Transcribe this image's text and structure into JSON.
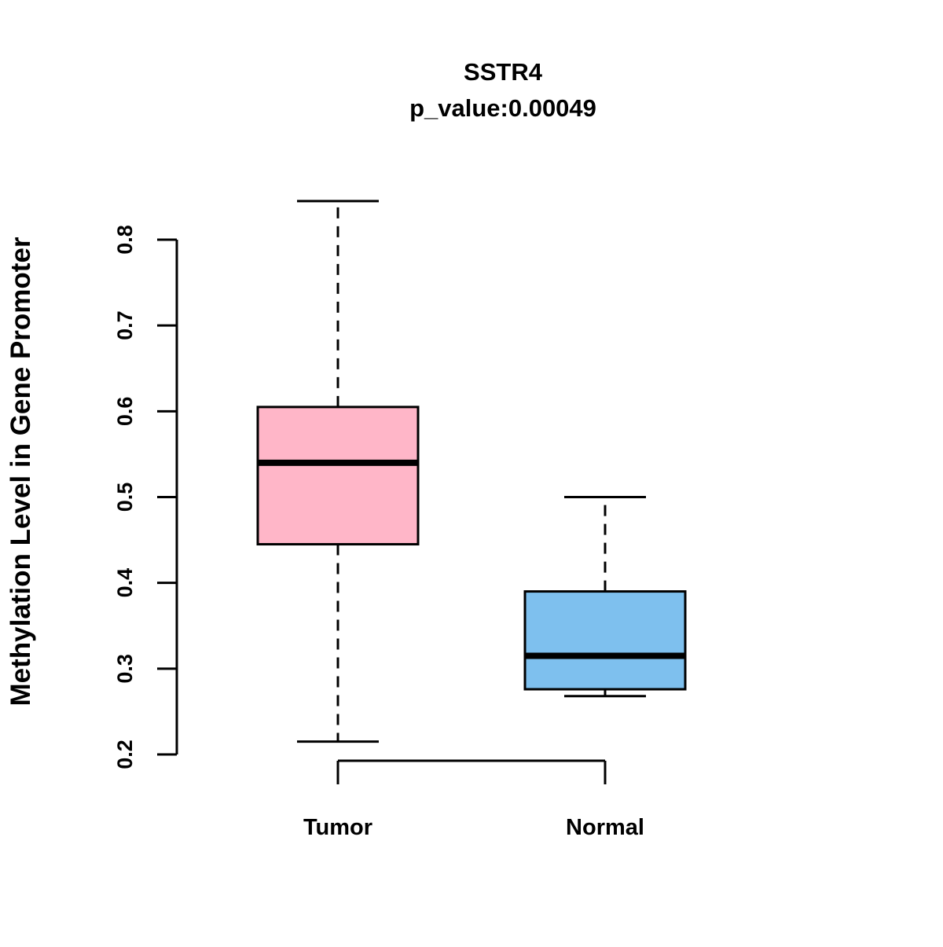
{
  "chart_data": {
    "type": "boxplot",
    "title": "SSTR4",
    "subtitle": "p_value:0.00049",
    "xlabel": "",
    "ylabel": "Methylation Level in Gene Promoter",
    "ylim": [
      0.2,
      0.8
    ],
    "yticks": [
      "0.2",
      "0.3",
      "0.4",
      "0.5",
      "0.6",
      "0.7",
      "0.8"
    ],
    "categories": [
      "Tumor",
      "Normal"
    ],
    "legend": "none",
    "grid": false,
    "groups": [
      {
        "label": "Tumor",
        "color": "#FFB6C8",
        "whisker_low": 0.215,
        "q1": 0.445,
        "median": 0.54,
        "q3": 0.605,
        "whisker_high": 0.845
      },
      {
        "label": "Normal",
        "color": "#7EC0EE",
        "whisker_low": 0.268,
        "q1": 0.276,
        "median": 0.315,
        "q3": 0.39,
        "whisker_high": 0.5
      }
    ]
  }
}
